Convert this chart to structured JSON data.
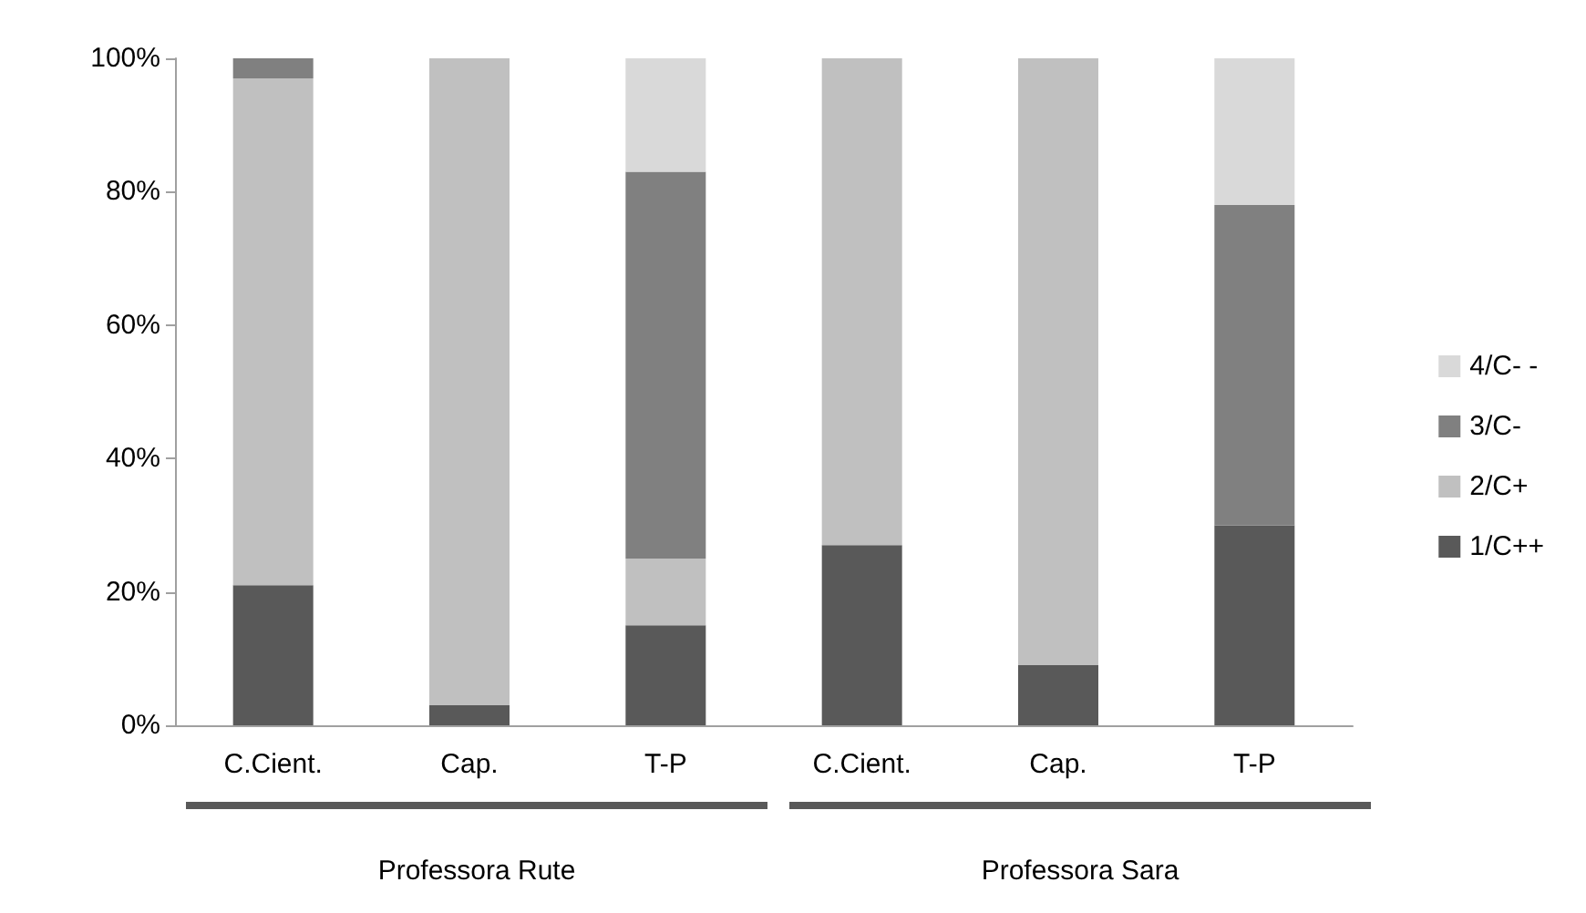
{
  "chart_data": {
    "type": "bar",
    "stacked": true,
    "categories": [
      "C.Cient.",
      "Cap.",
      "T-P",
      "C.Cient.",
      "Cap.",
      "T-P"
    ],
    "series": [
      {
        "name": "1/C++",
        "color": "#595959",
        "values": [
          21,
          3,
          15,
          27,
          9,
          30
        ]
      },
      {
        "name": "2/C+",
        "color": "#c0c0c0",
        "values": [
          76,
          97,
          10,
          73,
          91,
          0
        ]
      },
      {
        "name": "3/C-",
        "color": "#808080",
        "values": [
          3,
          0,
          58,
          0,
          0,
          48
        ]
      },
      {
        "name": "4/C- -",
        "color": "#d9d9d9",
        "values": [
          0,
          0,
          17,
          0,
          0,
          22
        ]
      }
    ],
    "ylim": [
      0,
      100
    ],
    "yticks": [
      {
        "value": 0,
        "label": "0%"
      },
      {
        "value": 20,
        "label": "20%"
      },
      {
        "value": 40,
        "label": "40%"
      },
      {
        "value": 60,
        "label": "60%"
      },
      {
        "value": 80,
        "label": "80%"
      },
      {
        "value": 100,
        "label": "100%"
      }
    ],
    "grid": false,
    "legend": "right",
    "annotations": [
      "Professora Rute",
      "Professora Sara"
    ]
  }
}
